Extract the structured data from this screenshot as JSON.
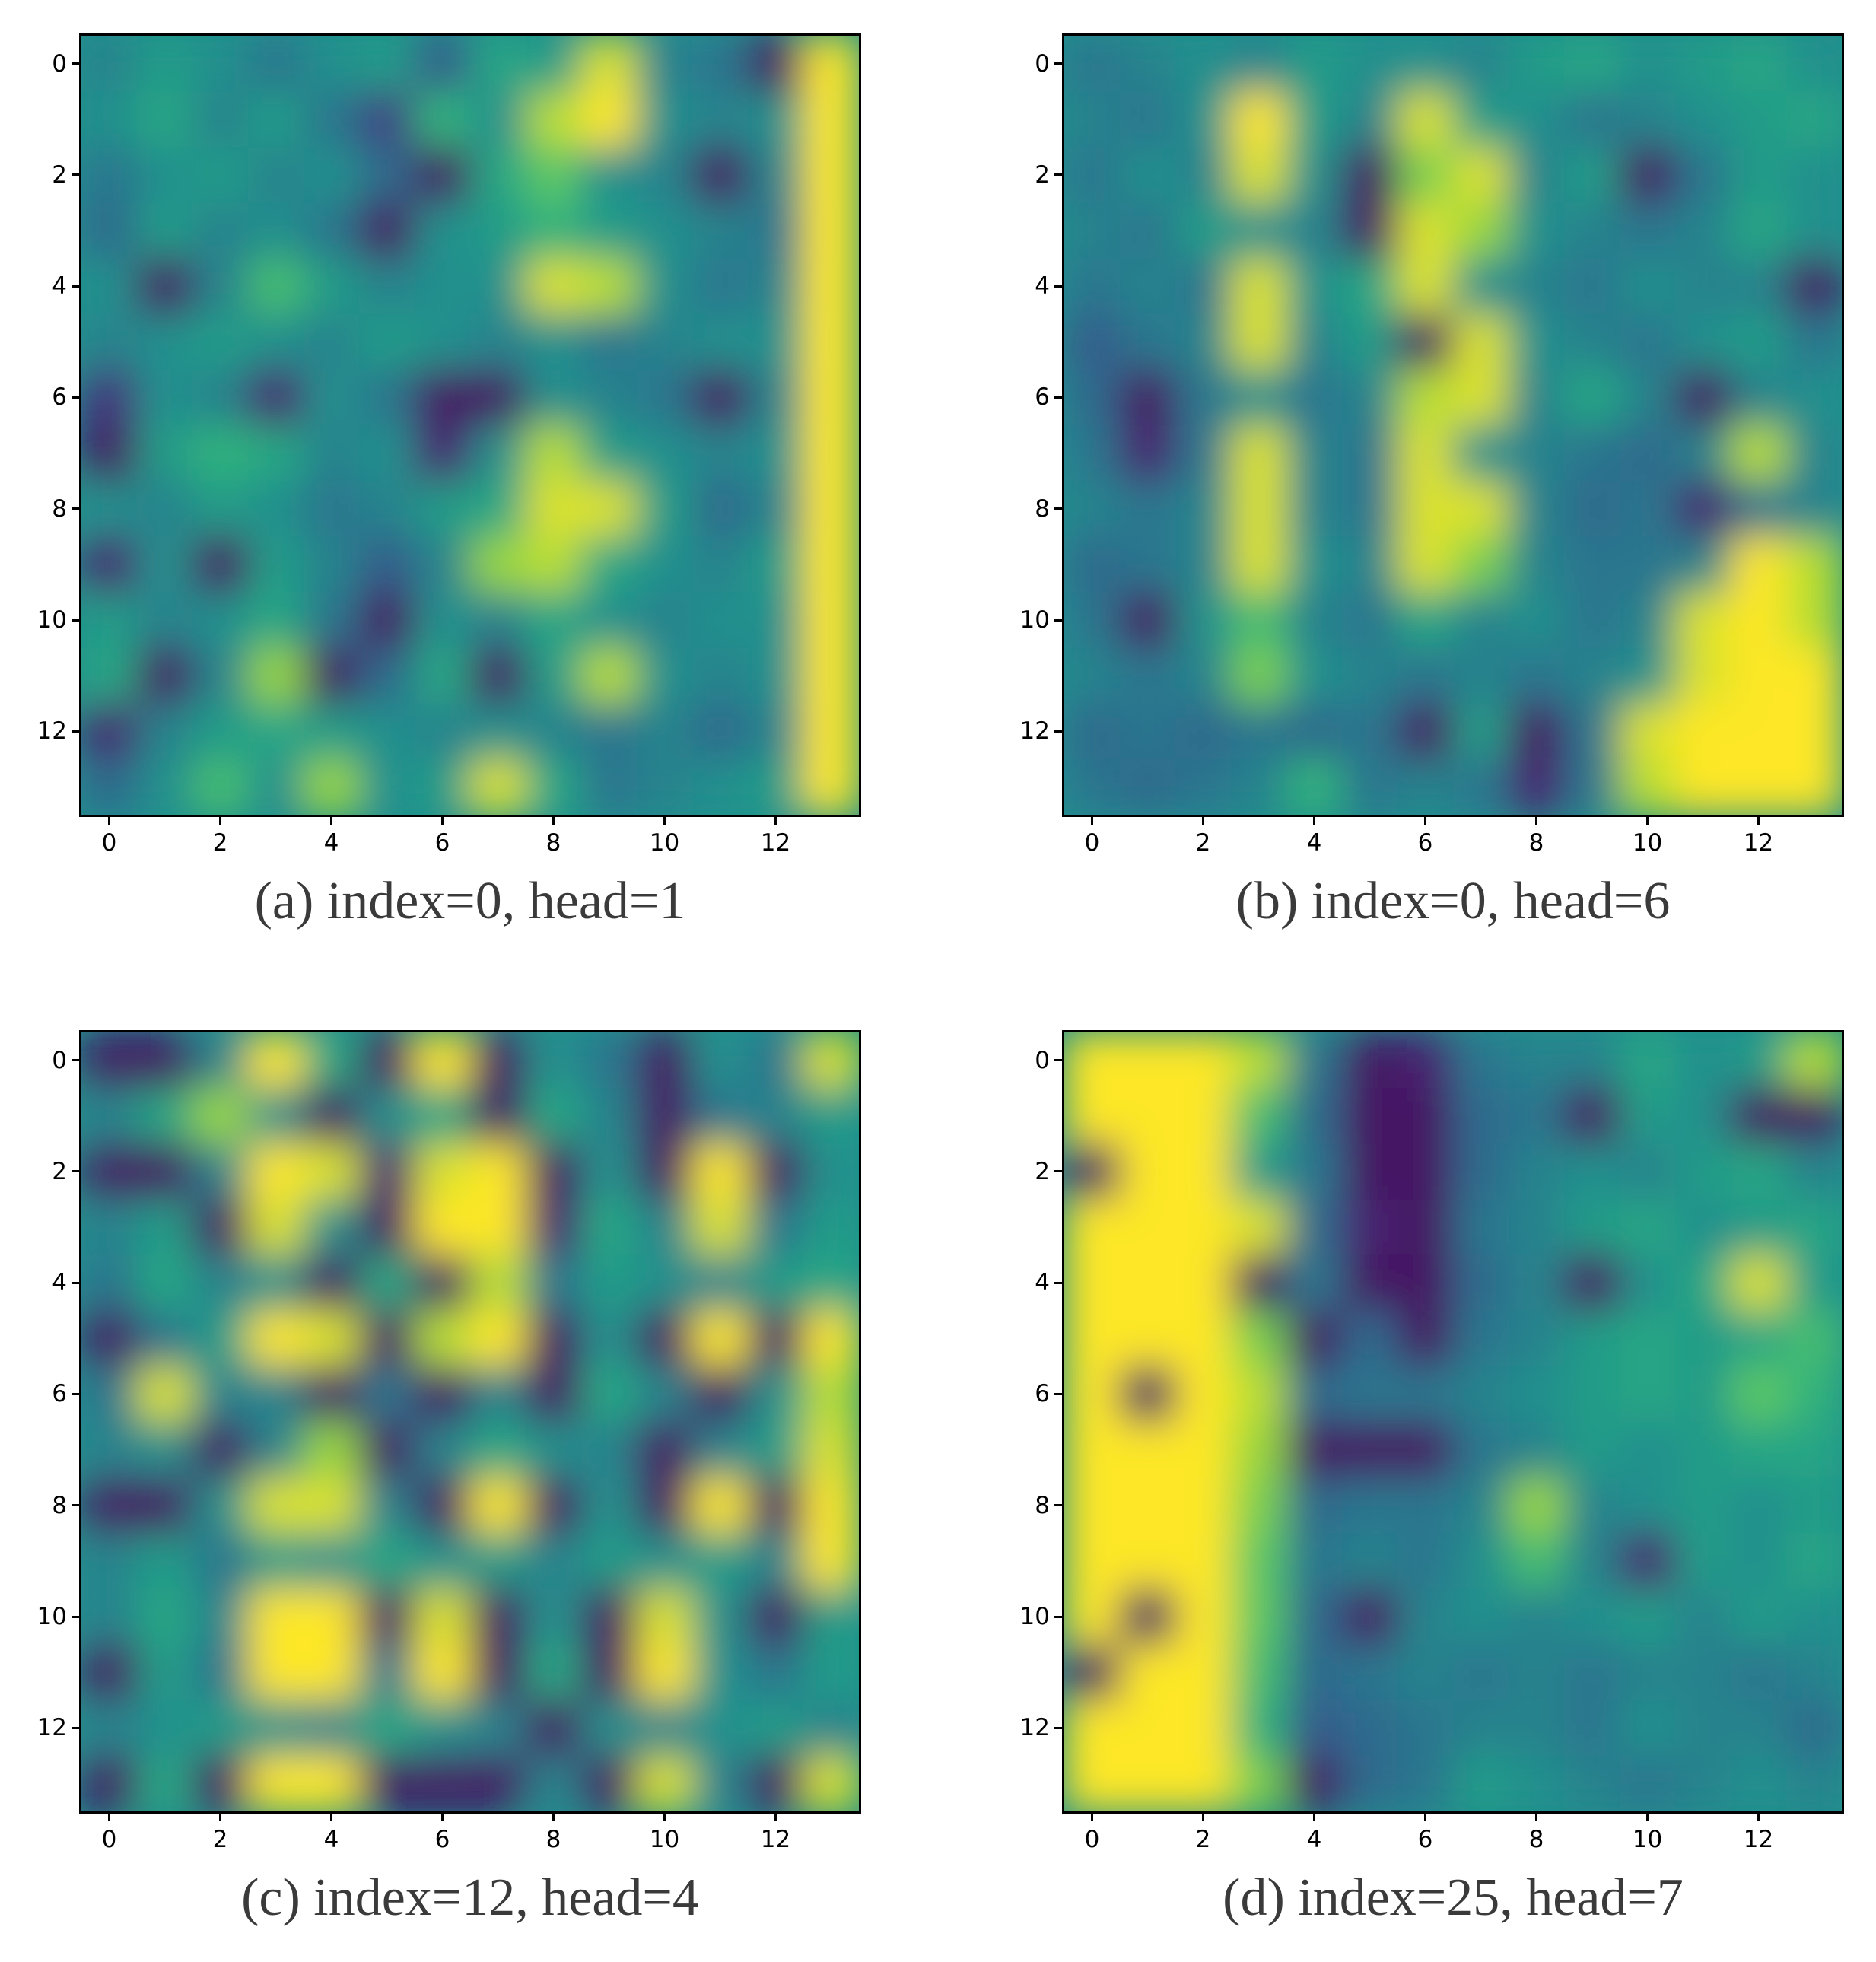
{
  "chart_data": [
    {
      "type": "heatmap",
      "caption": "(a) index=0, head=1",
      "colormap": "viridis",
      "x_ticks": [
        "0",
        "2",
        "4",
        "6",
        "8",
        "10",
        "12"
      ],
      "y_ticks": [
        "0",
        "2",
        "4",
        "6",
        "8",
        "10",
        "12"
      ],
      "xlim": [
        -0.5,
        13.5
      ],
      "ylim": [
        13.5,
        -0.5
      ],
      "grid": false,
      "values": [
        [
          0.45,
          0.55,
          0.5,
          0.4,
          0.5,
          0.55,
          0.3,
          0.6,
          0.55,
          0.95,
          0.45,
          0.4,
          0.05,
          1.0
        ],
        [
          0.5,
          0.6,
          0.45,
          0.55,
          0.4,
          0.2,
          0.65,
          0.5,
          0.9,
          1.0,
          0.5,
          0.45,
          0.5,
          1.0
        ],
        [
          0.4,
          0.5,
          0.55,
          0.45,
          0.5,
          0.35,
          0.05,
          0.6,
          0.75,
          0.5,
          0.45,
          0.05,
          0.45,
          1.0
        ],
        [
          0.35,
          0.55,
          0.45,
          0.5,
          0.4,
          0.05,
          0.5,
          0.55,
          0.65,
          0.55,
          0.5,
          0.45,
          0.4,
          1.0
        ],
        [
          0.5,
          0.05,
          0.45,
          0.7,
          0.55,
          0.45,
          0.5,
          0.5,
          0.95,
          0.9,
          0.5,
          0.4,
          0.45,
          1.0
        ],
        [
          0.45,
          0.5,
          0.55,
          0.5,
          0.45,
          0.55,
          0.5,
          0.45,
          0.5,
          0.4,
          0.45,
          0.5,
          0.5,
          1.0
        ],
        [
          0.15,
          0.5,
          0.45,
          0.1,
          0.5,
          0.4,
          0.05,
          0.05,
          0.5,
          0.45,
          0.4,
          0.05,
          0.45,
          1.0
        ],
        [
          0.05,
          0.55,
          0.65,
          0.6,
          0.45,
          0.5,
          0.1,
          0.5,
          0.9,
          0.55,
          0.5,
          0.45,
          0.5,
          1.0
        ],
        [
          0.5,
          0.45,
          0.55,
          0.5,
          0.4,
          0.45,
          0.55,
          0.6,
          0.95,
          0.95,
          0.55,
          0.35,
          0.45,
          1.0
        ],
        [
          0.1,
          0.5,
          0.05,
          0.55,
          0.45,
          0.3,
          0.45,
          0.85,
          0.9,
          0.6,
          0.5,
          0.45,
          0.55,
          1.0
        ],
        [
          0.55,
          0.45,
          0.5,
          0.6,
          0.4,
          0.05,
          0.5,
          0.45,
          0.6,
          0.5,
          0.45,
          0.5,
          0.5,
          1.0
        ],
        [
          0.6,
          0.05,
          0.45,
          0.85,
          0.05,
          0.35,
          0.6,
          0.05,
          0.55,
          0.9,
          0.5,
          0.45,
          0.5,
          1.0
        ],
        [
          0.1,
          0.45,
          0.55,
          0.6,
          0.55,
          0.5,
          0.45,
          0.5,
          0.45,
          0.4,
          0.45,
          0.35,
          0.45,
          1.0
        ],
        [
          0.35,
          0.5,
          0.7,
          0.5,
          0.85,
          0.5,
          0.55,
          0.95,
          0.6,
          0.4,
          0.45,
          0.5,
          0.55,
          1.0
        ]
      ]
    },
    {
      "type": "heatmap",
      "caption": "(b) index=0, head=6",
      "colormap": "viridis",
      "x_ticks": [
        "0",
        "2",
        "4",
        "6",
        "8",
        "10",
        "12"
      ],
      "y_ticks": [
        "0",
        "2",
        "4",
        "6",
        "8",
        "10",
        "12"
      ],
      "xlim": [
        -0.5,
        13.5
      ],
      "ylim": [
        13.5,
        -0.5
      ],
      "grid": false,
      "values": [
        [
          0.4,
          0.45,
          0.5,
          0.45,
          0.55,
          0.5,
          0.5,
          0.45,
          0.55,
          0.6,
          0.5,
          0.55,
          0.6,
          0.5
        ],
        [
          0.45,
          0.4,
          0.5,
          1.0,
          0.55,
          0.45,
          0.95,
          0.55,
          0.5,
          0.4,
          0.45,
          0.5,
          0.55,
          0.6
        ],
        [
          0.4,
          0.5,
          0.45,
          0.95,
          0.5,
          0.05,
          0.8,
          0.95,
          0.45,
          0.55,
          0.05,
          0.4,
          0.55,
          0.5
        ],
        [
          0.45,
          0.4,
          0.55,
          0.5,
          0.45,
          0.05,
          0.95,
          0.85,
          0.5,
          0.45,
          0.4,
          0.45,
          0.6,
          0.5
        ],
        [
          0.4,
          0.45,
          0.4,
          0.95,
          0.5,
          0.6,
          0.95,
          0.5,
          0.45,
          0.4,
          0.5,
          0.45,
          0.45,
          0.05
        ],
        [
          0.3,
          0.4,
          0.45,
          0.95,
          0.45,
          0.55,
          0.05,
          0.95,
          0.5,
          0.45,
          0.4,
          0.5,
          0.55,
          0.4
        ],
        [
          0.35,
          0.05,
          0.4,
          0.5,
          0.4,
          0.45,
          0.9,
          0.95,
          0.45,
          0.6,
          0.45,
          0.05,
          0.45,
          0.5
        ],
        [
          0.4,
          0.1,
          0.4,
          0.95,
          0.45,
          0.4,
          0.95,
          0.5,
          0.45,
          0.4,
          0.35,
          0.45,
          0.9,
          0.45
        ],
        [
          0.45,
          0.4,
          0.45,
          0.95,
          0.45,
          0.4,
          0.95,
          0.95,
          0.45,
          0.35,
          0.4,
          0.1,
          0.4,
          0.45
        ],
        [
          0.35,
          0.4,
          0.45,
          0.95,
          0.5,
          0.45,
          0.95,
          0.8,
          0.45,
          0.4,
          0.4,
          0.45,
          1.0,
          0.9
        ],
        [
          0.4,
          0.05,
          0.5,
          0.7,
          0.45,
          0.4,
          0.6,
          0.45,
          0.5,
          0.4,
          0.45,
          0.95,
          1.0,
          0.9
        ],
        [
          0.45,
          0.4,
          0.45,
          0.8,
          0.5,
          0.45,
          0.4,
          0.45,
          0.4,
          0.45,
          0.5,
          0.95,
          1.0,
          1.0
        ],
        [
          0.35,
          0.4,
          0.35,
          0.4,
          0.35,
          0.4,
          0.05,
          0.55,
          0.05,
          0.4,
          0.95,
          1.0,
          1.0,
          1.0
        ],
        [
          0.4,
          0.35,
          0.4,
          0.45,
          0.65,
          0.4,
          0.45,
          0.4,
          0.1,
          0.4,
          0.9,
          1.0,
          1.0,
          1.0
        ]
      ]
    },
    {
      "type": "heatmap",
      "caption": "(c) index=12, head=4",
      "colormap": "viridis",
      "x_ticks": [
        "0",
        "2",
        "4",
        "6",
        "8",
        "10",
        "12"
      ],
      "y_ticks": [
        "0",
        "2",
        "4",
        "6",
        "8",
        "10",
        "12"
      ],
      "xlim": [
        -0.5,
        13.5
      ],
      "ylim": [
        13.5,
        -0.5
      ],
      "grid": false,
      "values": [
        [
          0.05,
          0.05,
          0.45,
          1.0,
          0.6,
          0.05,
          1.0,
          0.05,
          0.5,
          0.4,
          0.05,
          0.5,
          0.4,
          0.95
        ],
        [
          0.45,
          0.6,
          0.85,
          0.5,
          0.05,
          0.5,
          0.6,
          0.05,
          0.6,
          0.45,
          0.05,
          0.4,
          0.45,
          0.55
        ],
        [
          0.05,
          0.05,
          0.45,
          1.0,
          0.95,
          0.1,
          0.95,
          1.0,
          0.05,
          0.5,
          0.05,
          1.0,
          0.05,
          0.5
        ],
        [
          0.45,
          0.55,
          0.05,
          0.95,
          0.5,
          0.05,
          1.0,
          1.0,
          0.1,
          0.6,
          0.45,
          0.95,
          0.4,
          0.55
        ],
        [
          0.4,
          0.6,
          0.45,
          0.5,
          0.05,
          0.6,
          0.05,
          0.9,
          0.4,
          0.55,
          0.5,
          0.45,
          0.55,
          0.6
        ],
        [
          0.05,
          0.4,
          0.55,
          1.0,
          0.95,
          0.05,
          0.9,
          1.0,
          0.05,
          0.5,
          0.05,
          1.0,
          0.05,
          1.0
        ],
        [
          0.4,
          0.95,
          0.45,
          0.45,
          0.05,
          0.4,
          0.05,
          0.45,
          0.05,
          0.6,
          0.45,
          0.05,
          0.5,
          0.9
        ],
        [
          0.45,
          0.5,
          0.05,
          0.45,
          0.85,
          0.05,
          0.45,
          0.6,
          0.5,
          0.45,
          0.05,
          0.45,
          0.55,
          0.95
        ],
        [
          0.05,
          0.05,
          0.5,
          0.95,
          0.95,
          0.45,
          0.05,
          1.0,
          0.05,
          0.5,
          0.05,
          1.0,
          0.05,
          1.0
        ],
        [
          0.45,
          0.55,
          0.4,
          0.55,
          0.5,
          0.6,
          0.5,
          0.55,
          0.45,
          0.55,
          0.5,
          0.55,
          0.45,
          1.0
        ],
        [
          0.45,
          0.6,
          0.45,
          1.0,
          1.0,
          0.05,
          0.95,
          0.05,
          0.5,
          0.05,
          0.95,
          0.5,
          0.05,
          0.55
        ],
        [
          0.05,
          0.55,
          0.4,
          1.0,
          1.0,
          0.4,
          1.0,
          0.05,
          0.6,
          0.05,
          1.0,
          0.5,
          0.4,
          0.55
        ],
        [
          0.45,
          0.5,
          0.55,
          0.5,
          0.45,
          0.6,
          0.5,
          0.45,
          0.05,
          0.5,
          0.45,
          0.5,
          0.55,
          0.45
        ],
        [
          0.05,
          0.6,
          0.05,
          1.0,
          1.0,
          0.05,
          0.05,
          0.05,
          0.45,
          0.05,
          0.95,
          0.45,
          0.05,
          0.95
        ]
      ]
    },
    {
      "type": "heatmap",
      "caption": "(d) index=25, head=7",
      "colormap": "viridis",
      "x_ticks": [
        "0",
        "2",
        "4",
        "6",
        "8",
        "10",
        "12"
      ],
      "y_ticks": [
        "0",
        "2",
        "4",
        "6",
        "8",
        "10",
        "12"
      ],
      "xlim": [
        -0.5,
        13.5
      ],
      "ylim": [
        13.5,
        -0.5
      ],
      "grid": false,
      "values": [
        [
          1.0,
          1.0,
          1.0,
          0.9,
          0.4,
          0.05,
          0.1,
          0.4,
          0.45,
          0.45,
          0.6,
          0.5,
          0.55,
          0.9
        ],
        [
          1.0,
          1.0,
          1.0,
          0.7,
          0.35,
          0.05,
          0.05,
          0.35,
          0.4,
          0.05,
          0.55,
          0.5,
          0.05,
          0.05
        ],
        [
          0.05,
          1.0,
          1.0,
          0.55,
          0.4,
          0.05,
          0.05,
          0.35,
          0.45,
          0.5,
          0.45,
          0.55,
          0.6,
          0.45
        ],
        [
          1.0,
          1.0,
          1.0,
          0.95,
          0.35,
          0.1,
          0.05,
          0.4,
          0.45,
          0.55,
          0.6,
          0.5,
          0.55,
          0.6
        ],
        [
          1.0,
          1.0,
          1.0,
          0.05,
          0.4,
          0.05,
          0.05,
          0.35,
          0.45,
          0.05,
          0.5,
          0.6,
          0.95,
          0.55
        ],
        [
          1.0,
          1.0,
          1.0,
          0.8,
          0.05,
          0.35,
          0.05,
          0.4,
          0.45,
          0.55,
          0.6,
          0.55,
          0.6,
          0.7
        ],
        [
          1.0,
          0.05,
          1.0,
          0.9,
          0.35,
          0.4,
          0.4,
          0.45,
          0.5,
          0.55,
          0.6,
          0.55,
          0.75,
          0.65
        ],
        [
          1.0,
          1.0,
          1.0,
          0.85,
          0.05,
          0.05,
          0.05,
          0.4,
          0.45,
          0.55,
          0.5,
          0.55,
          0.6,
          0.6
        ],
        [
          1.0,
          1.0,
          1.0,
          0.8,
          0.35,
          0.4,
          0.4,
          0.45,
          0.85,
          0.45,
          0.5,
          0.55,
          0.5,
          0.55
        ],
        [
          1.0,
          1.0,
          1.0,
          0.75,
          0.4,
          0.45,
          0.4,
          0.5,
          0.7,
          0.45,
          0.1,
          0.55,
          0.5,
          0.6
        ],
        [
          1.0,
          0.05,
          1.0,
          0.75,
          0.35,
          0.05,
          0.45,
          0.5,
          0.45,
          0.5,
          0.55,
          0.45,
          0.55,
          0.5
        ],
        [
          0.05,
          1.0,
          1.0,
          0.7,
          0.35,
          0.4,
          0.45,
          0.4,
          0.45,
          0.4,
          0.45,
          0.45,
          0.4,
          0.45
        ],
        [
          1.0,
          1.0,
          1.0,
          0.65,
          0.3,
          0.35,
          0.4,
          0.45,
          0.45,
          0.4,
          0.5,
          0.45,
          0.45,
          0.35
        ],
        [
          1.0,
          1.0,
          1.0,
          0.8,
          0.05,
          0.35,
          0.4,
          0.55,
          0.5,
          0.45,
          0.4,
          0.45,
          0.5,
          0.45
        ]
      ]
    }
  ]
}
